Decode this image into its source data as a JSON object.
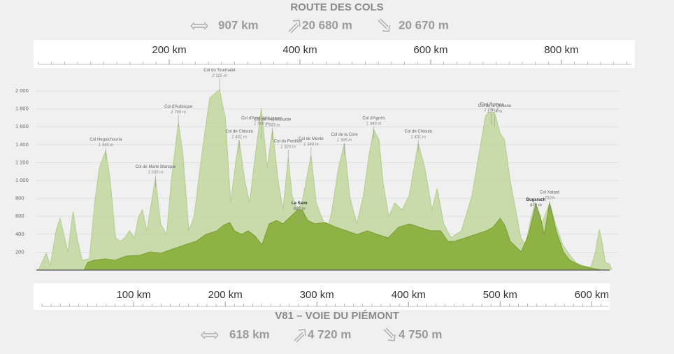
{
  "chart_data": {
    "type": "area",
    "ylim": [
      0,
      2200
    ],
    "yticks": [
      200,
      400,
      600,
      800,
      {
        "value": 1000,
        "label": "1 000"
      },
      {
        "value": 1200,
        "label": "1 200"
      },
      {
        "value": 1400,
        "label": "1 400"
      },
      {
        "value": 1600,
        "label": "1 600"
      },
      {
        "value": 1800,
        "label": "1 800"
      },
      {
        "value": 2000,
        "label": "2 000"
      }
    ],
    "grid": true,
    "series": [
      {
        "name": "ROUTE DES COLS",
        "distance": "907 km",
        "ascent": "20 680 m",
        "descent": "20 670 m",
        "color": "#c4d8a3",
        "xlim": [
          0,
          907
        ],
        "xticks": [
          {
            "value": 200,
            "label": "200 km"
          },
          {
            "value": 400,
            "label": "400 km"
          },
          {
            "value": 600,
            "label": "600 km"
          },
          {
            "value": 800,
            "label": "800 km"
          }
        ],
        "xminorticks": [
          0,
          20,
          40,
          60,
          80,
          100,
          120,
          140,
          160,
          180,
          220,
          240,
          260,
          280,
          300,
          320,
          340,
          360,
          380,
          420,
          440,
          460,
          480,
          500,
          520,
          540,
          560,
          580,
          620,
          640,
          660,
          680,
          700,
          720,
          740,
          760,
          780,
          820,
          840,
          860,
          880,
          900
        ],
        "x": [
          0,
          7,
          12,
          18,
          27,
          33,
          40,
          45,
          53,
          59,
          67,
          78,
          86,
          93,
          103,
          110,
          118,
          125,
          132,
          139,
          147,
          153,
          159,
          166,
          171,
          179,
          187,
          196,
          203,
          214,
          221,
          230,
          238,
          246,
          253,
          262,
          277,
          286,
          294,
          302,
          307,
          316,
          323,
          332,
          341,
          350,
          358,
          367,
          374,
          382,
          388,
          396,
          403,
          417,
          425,
          433,
          442,
          449,
          459,
          468,
          476,
          487,
          497,
          506,
          513,
          521,
          527,
          536,
          545,
          556,
          567,
          581,
          591,
          602,
          610,
          620,
          631,
          647,
          663,
          674,
          684,
          691,
          698,
          706,
          713,
          722,
          730,
          738,
          745,
          754,
          760,
          770,
          782,
          791,
          802,
          813,
          823,
          834,
          845,
          852,
          858,
          863,
          867,
          874,
          877
        ],
        "values": [
          0,
          109,
          188,
          47,
          438,
          578,
          359,
          203,
          656,
          359,
          109,
          125,
          750,
          1141,
          1336,
          984,
          359,
          320,
          359,
          438,
          359,
          594,
          672,
          438,
          672,
          1023,
          516,
          398,
          984,
          1648,
          1297,
          438,
          594,
          1063,
          1453,
          1922,
          2016,
          1688,
          750,
          1219,
          1453,
          984,
          750,
          1297,
          1805,
          1141,
          1570,
          984,
          672,
          1250,
          828,
          672,
          750,
          1281,
          750,
          594,
          438,
          672,
          1141,
          1414,
          828,
          516,
          828,
          1297,
          1570,
          1453,
          984,
          594,
          750,
          672,
          828,
          1414,
          1141,
          672,
          906,
          516,
          359,
          438,
          828,
          1297,
          1727,
          1766,
          1750,
          1531,
          1453,
          984,
          672,
          359,
          281,
          594,
          750,
          516,
          750,
          516,
          281,
          164,
          78,
          47,
          31,
          203,
          453,
          281,
          86,
          63,
          0
        ],
        "annotations": [
          {
            "name": "Col Heguichouria",
            "elevation": {
              "value": 1339,
              "label": "1 339 m"
            },
            "x": 103
          },
          {
            "name": "Col de Marie Blanque",
            "elevation": {
              "value": 1035,
              "label": "1 035 m"
            },
            "x": 179
          },
          {
            "name": "Col d'Aubisque",
            "elevation": {
              "value": 1709,
              "label": "1 709 m"
            },
            "x": 214
          },
          {
            "name": "Col du Tourmalet",
            "elevation": {
              "value": 2115,
              "label": "2 115 m"
            },
            "x": 277
          },
          {
            "name": "Col de Chioula",
            "elevation": {
              "value": 1431,
              "label": "1 431 m"
            },
            "x": 307
          },
          {
            "name": "Col d'Azet Val-Louron",
            "elevation": {
              "value": 1580,
              "label": "1 580 m"
            },
            "x": 341
          },
          {
            "name": "Col de Peyresourde",
            "elevation": {
              "value": 1563,
              "label": "1 563 m"
            },
            "x": 358
          },
          {
            "name": "Col du Portillon",
            "elevation": {
              "value": 1320,
              "label": "1 320 m"
            },
            "x": 382
          },
          {
            "name": "Col de Mente",
            "elevation": {
              "value": 1349,
              "label": "1 349 m"
            },
            "x": 417
          },
          {
            "name": "Col de la Core",
            "elevation": {
              "value": 1395,
              "label": "1 395 m"
            },
            "x": 468
          },
          {
            "name": "Col d'Agnès",
            "elevation": {
              "value": 1580,
              "label": "1 580 m"
            },
            "x": 513
          },
          {
            "name": "Col de Chioula",
            "elevation": {
              "value": 1431,
              "label": "1 431 m"
            },
            "x": 581
          },
          {
            "name": "Font Romeu",
            "elevation": {
              "value": 1730,
              "label": "1 730 m"
            },
            "x": 693
          },
          {
            "name": "Col de la Quillane",
            "elevation": {
              "value": 1714,
              "label": "1 714 m"
            },
            "x": 698
          }
        ]
      },
      {
        "name": "V81 – VOIE DU PIÉMONT",
        "distance": "618 km",
        "ascent": "4 720 m",
        "descent": "4 750 m",
        "color": "#8fb244",
        "xlim": [
          0,
          618
        ],
        "xticks": [
          {
            "value": 100,
            "label": "100 km"
          },
          {
            "value": 200,
            "label": "200 km"
          },
          {
            "value": 300,
            "label": "300 km"
          },
          {
            "value": 400,
            "label": "400 km"
          },
          {
            "value": 500,
            "label": "500 km"
          },
          {
            "value": 600,
            "label": "600 km"
          }
        ],
        "xminorticks": [
          0,
          10,
          20,
          30,
          40,
          50,
          60,
          70,
          80,
          90,
          110,
          120,
          130,
          140,
          150,
          160,
          170,
          180,
          190,
          210,
          220,
          230,
          240,
          250,
          260,
          270,
          280,
          290,
          310,
          320,
          330,
          340,
          350,
          360,
          370,
          380,
          390,
          410,
          420,
          430,
          440,
          450,
          460,
          470,
          480,
          490,
          510,
          520,
          530,
          540,
          550,
          560,
          570,
          580,
          590,
          610
        ],
        "x": [
          46,
          50,
          57,
          69,
          80,
          92,
          107,
          118,
          130,
          145,
          156,
          168,
          179,
          191,
          198,
          205,
          210,
          218,
          225,
          233,
          240,
          248,
          256,
          263,
          271,
          279,
          284,
          290,
          298,
          309,
          321,
          332,
          344,
          355,
          366,
          378,
          389,
          401,
          412,
          424,
          435,
          443,
          450,
          462,
          473,
          485,
          492,
          500,
          505,
          511,
          523,
          531,
          539,
          544,
          548,
          554,
          561,
          569,
          576,
          588,
          599,
          611
        ],
        "values": [
          0,
          86,
          109,
          125,
          109,
          156,
          164,
          203,
          188,
          242,
          281,
          320,
          398,
          438,
          500,
          531,
          438,
          398,
          438,
          375,
          281,
          516,
          555,
          516,
          594,
          672,
          672,
          555,
          516,
          531,
          477,
          438,
          398,
          438,
          398,
          359,
          477,
          516,
          477,
          438,
          438,
          320,
          320,
          359,
          398,
          438,
          477,
          578,
          500,
          320,
          203,
          398,
          734,
          594,
          398,
          750,
          438,
          203,
          109,
          47,
          23,
          0
        ],
        "annotations": [
          {
            "name": "La Save",
            "elevation": {
              "value": 628,
              "label": "628 m"
            },
            "x": 281
          },
          {
            "name": "Bugarach",
            "elevation": {
              "value": 670,
              "label": "670 m"
            },
            "x": 539
          },
          {
            "name": "Col Xatard",
            "elevation": {
              "value": 752,
              "label": "752m"
            },
            "x": 554
          }
        ]
      }
    ]
  }
}
